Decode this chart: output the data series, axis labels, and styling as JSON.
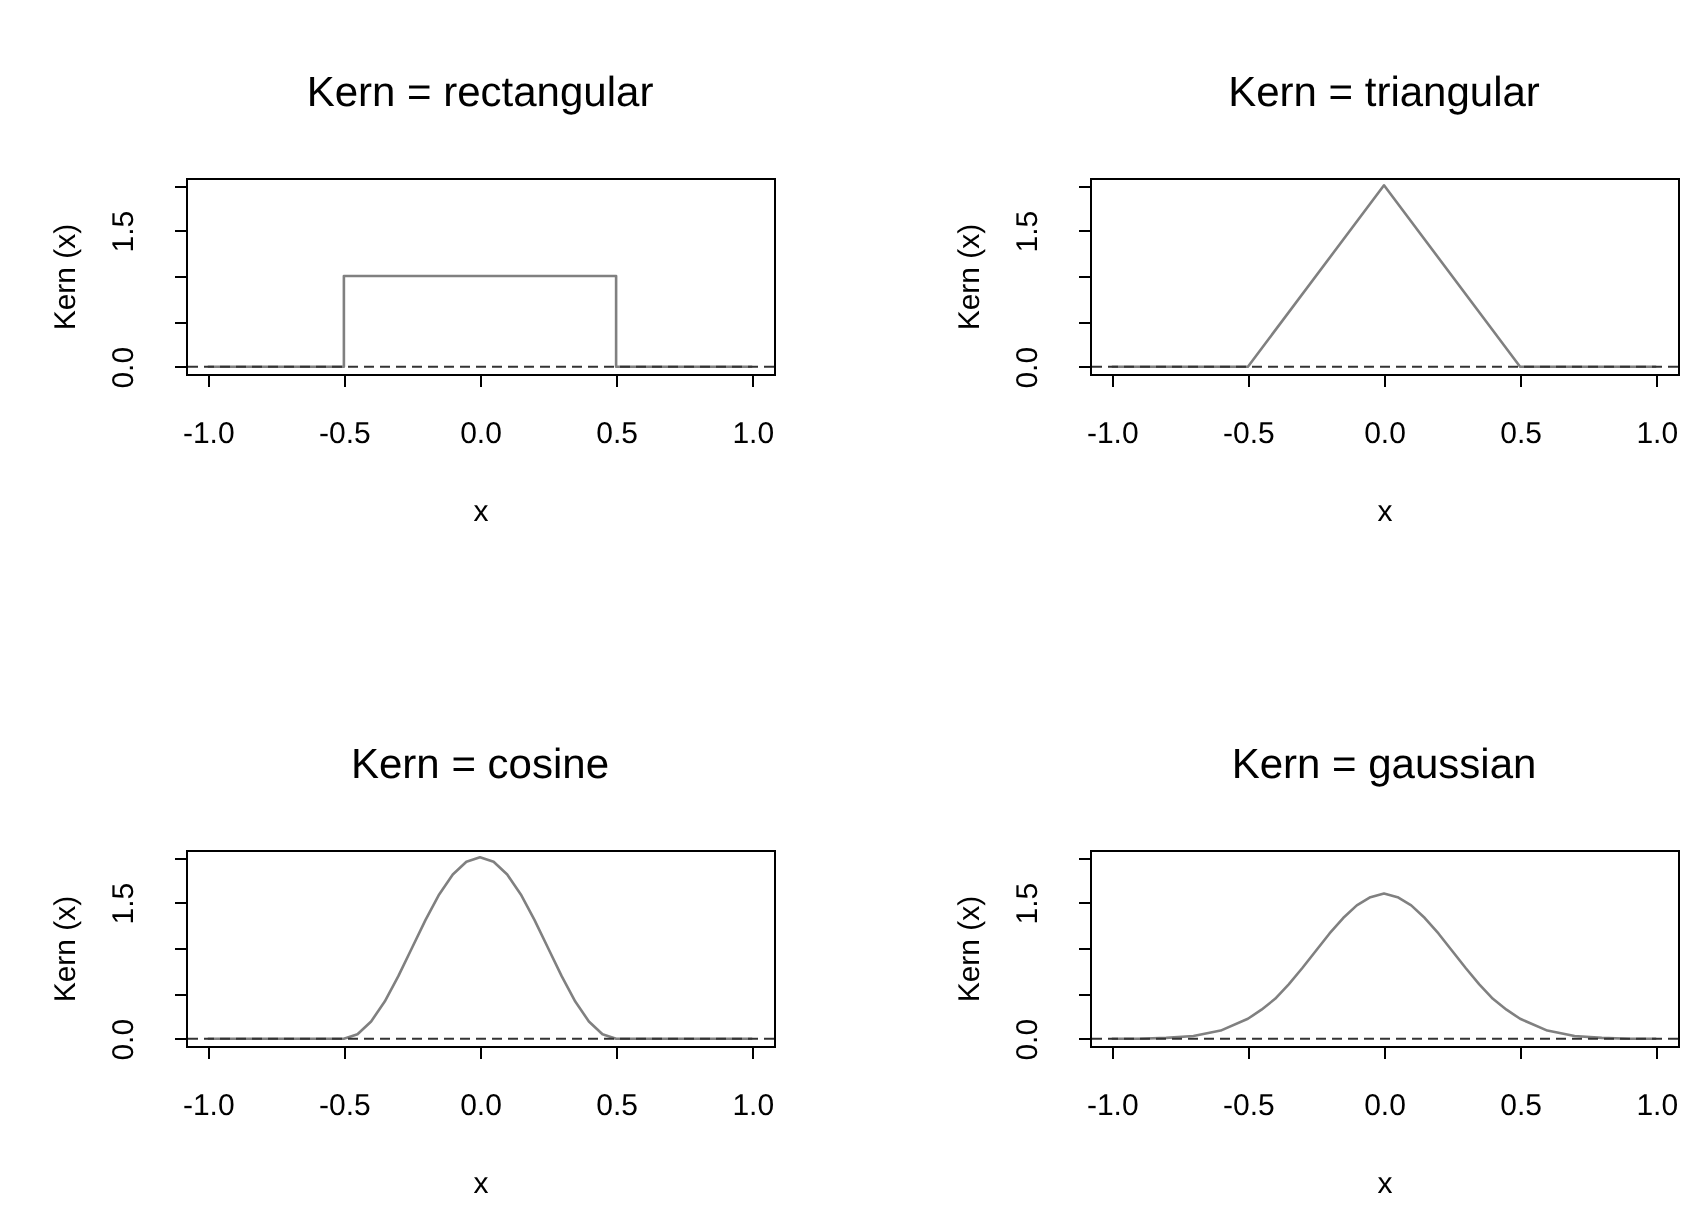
{
  "chart_data": [
    {
      "type": "line",
      "title": "Kern =  rectangular",
      "xlabel": "x",
      "ylabel": "Kern (x)",
      "x": [
        -1,
        -0.5,
        -0.5,
        0.5,
        0.5,
        1
      ],
      "series": [
        {
          "color": "#808080",
          "values": [
            0,
            0,
            1,
            1,
            0,
            0
          ]
        }
      ],
      "xlim": [
        -1.08,
        1.08
      ],
      "ylim": [
        -0.08,
        2.08
      ],
      "xticks": [
        {
          "value": -1,
          "label": "-1.0"
        },
        {
          "value": -0.5,
          "label": "-0.5"
        },
        {
          "value": 0,
          "label": "0.0"
        },
        {
          "value": 0.5,
          "label": "0.5"
        },
        {
          "value": 1,
          "label": "1.0"
        }
      ],
      "yticks": [
        {
          "value": 0,
          "label": "0.0"
        },
        {
          "value": 0.5,
          "label": null
        },
        {
          "value": 1,
          "label": null
        },
        {
          "value": 1.5,
          "label": "1.5"
        },
        {
          "value": 2,
          "label": null
        }
      ],
      "ref_lines": [
        {
          "axis": "y",
          "value": 0,
          "line_style": "dashed",
          "color": "#333333"
        }
      ]
    },
    {
      "type": "line",
      "title": "Kern =  triangular",
      "xlabel": "x",
      "ylabel": "Kern (x)",
      "x": [
        -1,
        -0.5,
        0,
        0.5,
        1
      ],
      "series": [
        {
          "color": "#808080",
          "values": [
            0,
            0,
            2,
            0,
            0
          ]
        }
      ],
      "xlim": [
        -1.08,
        1.08
      ],
      "ylim": [
        -0.08,
        2.08
      ],
      "xticks": [
        {
          "value": -1,
          "label": "-1.0"
        },
        {
          "value": -0.5,
          "label": "-0.5"
        },
        {
          "value": 0,
          "label": "0.0"
        },
        {
          "value": 0.5,
          "label": "0.5"
        },
        {
          "value": 1,
          "label": "1.0"
        }
      ],
      "yticks": [
        {
          "value": 0,
          "label": "0.0"
        },
        {
          "value": 0.5,
          "label": null
        },
        {
          "value": 1,
          "label": null
        },
        {
          "value": 1.5,
          "label": "1.5"
        },
        {
          "value": 2,
          "label": null
        }
      ],
      "ref_lines": [
        {
          "axis": "y",
          "value": 0,
          "line_style": "dashed",
          "color": "#333333"
        }
      ]
    },
    {
      "type": "line",
      "title": "Kern =  cosine",
      "xlabel": "x",
      "ylabel": "Kern (x)",
      "x": [
        -1,
        -0.5,
        -0.45,
        -0.4,
        -0.35,
        -0.3,
        -0.25,
        -0.2,
        -0.15,
        -0.1,
        -0.05,
        0,
        0.05,
        0.1,
        0.15,
        0.2,
        0.25,
        0.3,
        0.35,
        0.4,
        0.45,
        0.5,
        1
      ],
      "series": [
        {
          "color": "#808080",
          "values": [
            0,
            0,
            0.05,
            0.19,
            0.41,
            0.69,
            1.0,
            1.31,
            1.59,
            1.81,
            1.95,
            2.0,
            1.95,
            1.81,
            1.59,
            1.31,
            1.0,
            0.69,
            0.41,
            0.19,
            0.05,
            0,
            0
          ]
        }
      ],
      "xlim": [
        -1.08,
        1.08
      ],
      "ylim": [
        -0.08,
        2.08
      ],
      "xticks": [
        {
          "value": -1,
          "label": "-1.0"
        },
        {
          "value": -0.5,
          "label": "-0.5"
        },
        {
          "value": 0,
          "label": "0.0"
        },
        {
          "value": 0.5,
          "label": "0.5"
        },
        {
          "value": 1,
          "label": "1.0"
        }
      ],
      "yticks": [
        {
          "value": 0,
          "label": "0.0"
        },
        {
          "value": 0.5,
          "label": null
        },
        {
          "value": 1,
          "label": null
        },
        {
          "value": 1.5,
          "label": "1.5"
        },
        {
          "value": 2,
          "label": null
        }
      ],
      "ref_lines": [
        {
          "axis": "y",
          "value": 0,
          "line_style": "dashed",
          "color": "#333333"
        }
      ]
    },
    {
      "type": "line",
      "title": "Kern =  gaussian",
      "xlabel": "x",
      "ylabel": "Kern (x)",
      "x": [
        -1,
        -0.9,
        -0.8,
        -0.7,
        -0.6,
        -0.5,
        -0.45,
        -0.4,
        -0.35,
        -0.3,
        -0.25,
        -0.2,
        -0.15,
        -0.1,
        -0.05,
        0,
        0.05,
        0.1,
        0.15,
        0.2,
        0.25,
        0.3,
        0.35,
        0.4,
        0.45,
        0.5,
        0.6,
        0.7,
        0.8,
        0.9,
        1
      ],
      "series": [
        {
          "color": "#808080",
          "values": [
            0,
            0,
            0.01,
            0.03,
            0.09,
            0.22,
            0.32,
            0.44,
            0.6,
            0.78,
            0.97,
            1.16,
            1.33,
            1.47,
            1.56,
            1.6,
            1.56,
            1.47,
            1.33,
            1.16,
            0.97,
            0.78,
            0.6,
            0.44,
            0.32,
            0.22,
            0.09,
            0.03,
            0.01,
            0,
            0
          ]
        }
      ],
      "xlim": [
        -1.08,
        1.08
      ],
      "ylim": [
        -0.08,
        2.08
      ],
      "xticks": [
        {
          "value": -1,
          "label": "-1.0"
        },
        {
          "value": -0.5,
          "label": "-0.5"
        },
        {
          "value": 0,
          "label": "0.0"
        },
        {
          "value": 0.5,
          "label": "0.5"
        },
        {
          "value": 1,
          "label": "1.0"
        }
      ],
      "yticks": [
        {
          "value": 0,
          "label": "0.0"
        },
        {
          "value": 0.5,
          "label": null
        },
        {
          "value": 1,
          "label": null
        },
        {
          "value": 1.5,
          "label": "1.5"
        },
        {
          "value": 2,
          "label": null
        }
      ],
      "ref_lines": [
        {
          "axis": "y",
          "value": 0,
          "line_style": "dashed",
          "color": "#333333"
        }
      ]
    }
  ]
}
